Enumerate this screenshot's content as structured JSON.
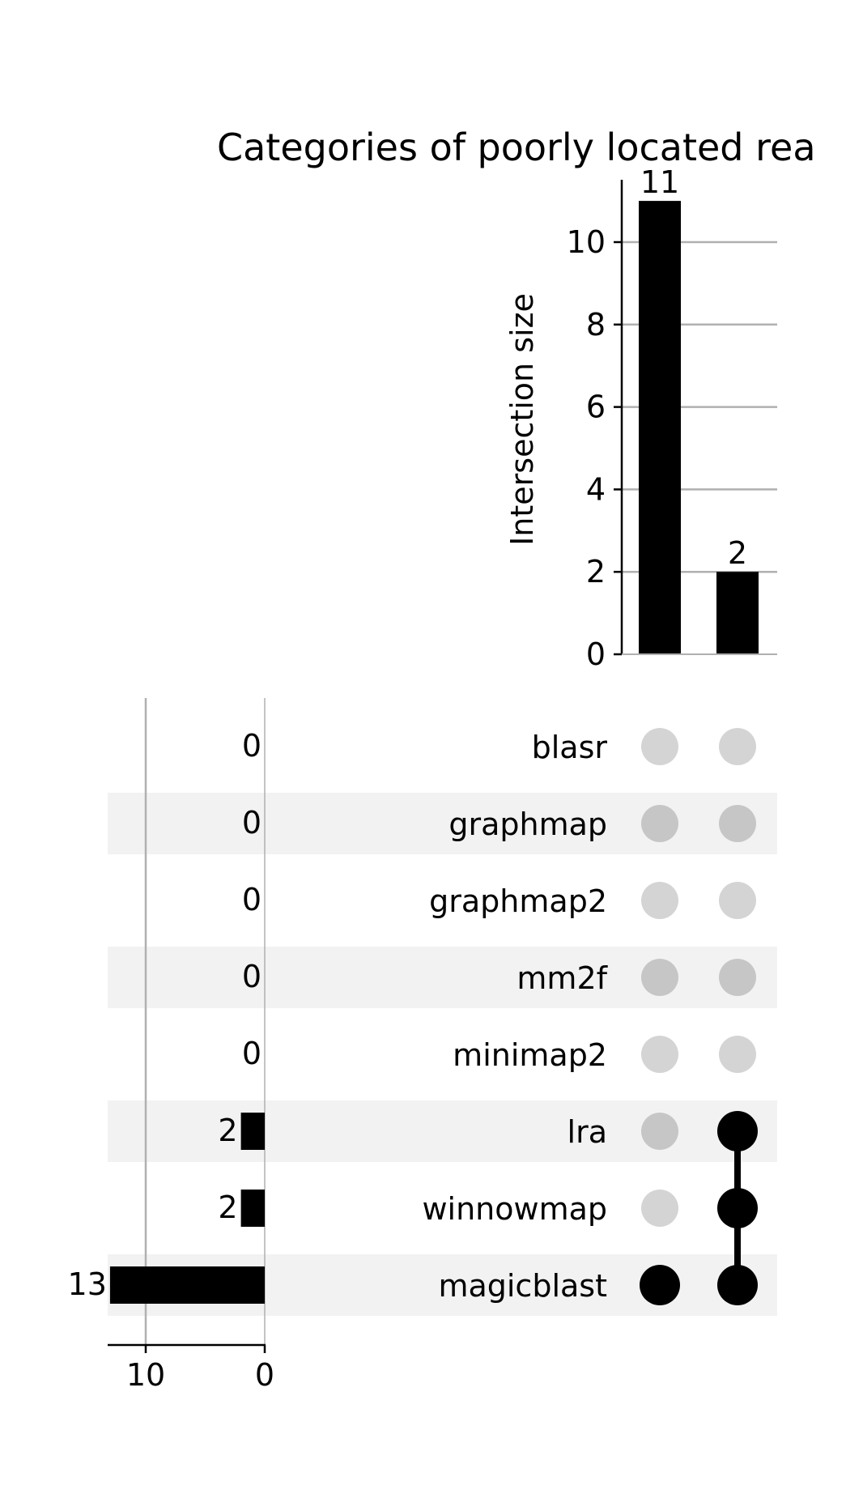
{
  "chart_data": {
    "type": "upset",
    "title": "Categories of poorly located rea",
    "intersections": {
      "ylabel": "Intersection size",
      "ylim": [
        0,
        11.55
      ],
      "yticks": [
        0,
        2,
        4,
        6,
        8,
        10
      ],
      "values": [
        11,
        2
      ],
      "value_labels": [
        "11",
        "2"
      ],
      "grid": true
    },
    "sets": [
      {
        "name": "blasr",
        "size": 0,
        "size_label": "0"
      },
      {
        "name": "graphmap",
        "size": 0,
        "size_label": "0"
      },
      {
        "name": "graphmap2",
        "size": 0,
        "size_label": "0"
      },
      {
        "name": "mm2f",
        "size": 0,
        "size_label": "0"
      },
      {
        "name": "minimap2",
        "size": 0,
        "size_label": "0"
      },
      {
        "name": "lra",
        "size": 2,
        "size_label": "2"
      },
      {
        "name": "winnowmap",
        "size": 2,
        "size_label": "2"
      },
      {
        "name": "magicblast",
        "size": 13,
        "size_label": "13"
      }
    ],
    "membership": [
      [
        "magicblast"
      ],
      [
        "lra",
        "winnowmap",
        "magicblast"
      ]
    ],
    "set_size_axis": {
      "ticks": [
        10,
        0
      ],
      "tick_labels": [
        "10",
        "0"
      ],
      "xlim": [
        13,
        0
      ]
    },
    "colors": {
      "bar": "#000000",
      "dot_active": "#000000",
      "dot_inactive_light": "#d4d4d4",
      "dot_inactive_dark": "#c6c6c6",
      "row_shade": "#f2f2f2",
      "grid": "#b0b0b0"
    }
  }
}
